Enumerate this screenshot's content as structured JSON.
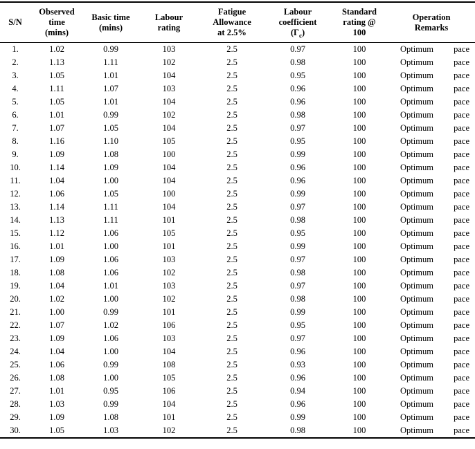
{
  "table": {
    "columns": [
      {
        "id": "sn",
        "label_lines": [
          "S/N"
        ]
      },
      {
        "id": "observed",
        "label_lines": [
          "Observed",
          "time",
          "(mins)"
        ]
      },
      {
        "id": "basic",
        "label_lines": [
          "Basic time",
          "(mins)"
        ]
      },
      {
        "id": "labour_rating",
        "label_lines": [
          "Labour",
          "rating"
        ]
      },
      {
        "id": "fatigue",
        "label_lines": [
          "Fatigue",
          "Allowance",
          "at 2.5%"
        ]
      },
      {
        "id": "coefficient",
        "label_lines": [
          "Labour",
          "coefficient"
        ],
        "symbol": {
          "open": "(Γ",
          "sub": "c",
          "close": ")"
        }
      },
      {
        "id": "standard",
        "label_lines": [
          "Standard",
          "rating @",
          "100"
        ]
      },
      {
        "id": "remarks",
        "label_lines": [
          "Operation",
          "Remarks"
        ]
      }
    ],
    "rows": [
      {
        "sn": "1.",
        "observed": "1.02",
        "basic": "0.99",
        "labour_rating": "103",
        "fatigue": "2.5",
        "coefficient": "0.97",
        "standard": "100",
        "remarks": "Optimum pace"
      },
      {
        "sn": "2.",
        "observed": "1.13",
        "basic": "1.11",
        "labour_rating": "102",
        "fatigue": "2.5",
        "coefficient": "0.98",
        "standard": "100",
        "remarks": "Optimum pace"
      },
      {
        "sn": "3.",
        "observed": "1.05",
        "basic": "1.01",
        "labour_rating": "104",
        "fatigue": "2.5",
        "coefficient": "0.95",
        "standard": "100",
        "remarks": "Optimum pace"
      },
      {
        "sn": "4.",
        "observed": "1.11",
        "basic": "1.07",
        "labour_rating": "103",
        "fatigue": "2.5",
        "coefficient": "0.96",
        "standard": "100",
        "remarks": "Optimum pace"
      },
      {
        "sn": "5.",
        "observed": "1.05",
        "basic": "1.01",
        "labour_rating": "104",
        "fatigue": "2.5",
        "coefficient": "0.96",
        "standard": "100",
        "remarks": "Optimum pace"
      },
      {
        "sn": "6.",
        "observed": "1.01",
        "basic": "0.99",
        "labour_rating": "102",
        "fatigue": "2.5",
        "coefficient": "0.98",
        "standard": "100",
        "remarks": "Optimum pace"
      },
      {
        "sn": "7.",
        "observed": "1.07",
        "basic": "1.05",
        "labour_rating": "104",
        "fatigue": "2.5",
        "coefficient": "0.97",
        "standard": "100",
        "remarks": "Optimum pace"
      },
      {
        "sn": "8.",
        "observed": "1.16",
        "basic": "1.10",
        "labour_rating": "105",
        "fatigue": "2.5",
        "coefficient": "0.95",
        "standard": "100",
        "remarks": "Optimum pace"
      },
      {
        "sn": "9.",
        "observed": "1.09",
        "basic": "1.08",
        "labour_rating": "100",
        "fatigue": "2.5",
        "coefficient": "0.99",
        "standard": "100",
        "remarks": "Optimum pace"
      },
      {
        "sn": "10.",
        "observed": "1.14",
        "basic": "1.09",
        "labour_rating": "104",
        "fatigue": "2.5",
        "coefficient": "0.96",
        "standard": "100",
        "remarks": "Optimum pace"
      },
      {
        "sn": "11.",
        "observed": "1.04",
        "basic": "1.00",
        "labour_rating": "104",
        "fatigue": "2.5",
        "coefficient": "0.96",
        "standard": "100",
        "remarks": "Optimum pace"
      },
      {
        "sn": "12.",
        "observed": "1.06",
        "basic": "1.05",
        "labour_rating": "100",
        "fatigue": "2.5",
        "coefficient": "0.99",
        "standard": "100",
        "remarks": "Optimum pace"
      },
      {
        "sn": "13.",
        "observed": "1.14",
        "basic": "1.11",
        "labour_rating": "104",
        "fatigue": "2.5",
        "coefficient": "0.97",
        "standard": "100",
        "remarks": "Optimum pace"
      },
      {
        "sn": "14.",
        "observed": "1.13",
        "basic": "1.11",
        "labour_rating": "101",
        "fatigue": "2.5",
        "coefficient": "0.98",
        "standard": "100",
        "remarks": "Optimum pace"
      },
      {
        "sn": "15.",
        "observed": "1.12",
        "basic": "1.06",
        "labour_rating": "105",
        "fatigue": "2.5",
        "coefficient": "0.95",
        "standard": "100",
        "remarks": "Optimum pace"
      },
      {
        "sn": "16.",
        "observed": "1.01",
        "basic": "1.00",
        "labour_rating": "101",
        "fatigue": "2.5",
        "coefficient": "0.99",
        "standard": "100",
        "remarks": "Optimum pace"
      },
      {
        "sn": "17.",
        "observed": "1.09",
        "basic": "1.06",
        "labour_rating": "103",
        "fatigue": "2.5",
        "coefficient": "0.97",
        "standard": "100",
        "remarks": "Optimum pace"
      },
      {
        "sn": "18.",
        "observed": "1.08",
        "basic": "1.06",
        "labour_rating": "102",
        "fatigue": "2.5",
        "coefficient": "0.98",
        "standard": "100",
        "remarks": "Optimum pace"
      },
      {
        "sn": "19.",
        "observed": "1.04",
        "basic": "1.01",
        "labour_rating": "103",
        "fatigue": "2.5",
        "coefficient": "0.97",
        "standard": "100",
        "remarks": "Optimum pace"
      },
      {
        "sn": "20.",
        "observed": "1.02",
        "basic": "1.00",
        "labour_rating": "102",
        "fatigue": "2.5",
        "coefficient": "0.98",
        "standard": "100",
        "remarks": "Optimum pace"
      },
      {
        "sn": "21.",
        "observed": "1.00",
        "basic": "0.99",
        "labour_rating": "101",
        "fatigue": "2.5",
        "coefficient": "0.99",
        "standard": "100",
        "remarks": "Optimum pace"
      },
      {
        "sn": "22.",
        "observed": "1.07",
        "basic": "1.02",
        "labour_rating": "106",
        "fatigue": "2.5",
        "coefficient": "0.95",
        "standard": "100",
        "remarks": "Optimum pace"
      },
      {
        "sn": "23.",
        "observed": "1.09",
        "basic": "1.06",
        "labour_rating": "103",
        "fatigue": "2.5",
        "coefficient": "0.97",
        "standard": "100",
        "remarks": "Optimum pace"
      },
      {
        "sn": "24.",
        "observed": "1.04",
        "basic": "1.00",
        "labour_rating": "104",
        "fatigue": "2.5",
        "coefficient": "0.96",
        "standard": "100",
        "remarks": "Optimum pace"
      },
      {
        "sn": "25.",
        "observed": "1.06",
        "basic": "0.99",
        "labour_rating": "108",
        "fatigue": "2.5",
        "coefficient": "0.93",
        "standard": "100",
        "remarks": "Optimum pace"
      },
      {
        "sn": "26.",
        "observed": "1.08",
        "basic": "1.00",
        "labour_rating": "105",
        "fatigue": "2.5",
        "coefficient": "0.96",
        "standard": "100",
        "remarks": "Optimum pace"
      },
      {
        "sn": "27.",
        "observed": "1.01",
        "basic": "0.95",
        "labour_rating": "106",
        "fatigue": "2.5",
        "coefficient": "0.94",
        "standard": "100",
        "remarks": "Optimum pace"
      },
      {
        "sn": "28.",
        "observed": "1.03",
        "basic": "0.99",
        "labour_rating": "104",
        "fatigue": "2.5",
        "coefficient": "0.96",
        "standard": "100",
        "remarks": "Optimum pace"
      },
      {
        "sn": "29.",
        "observed": "1.09",
        "basic": "1.08",
        "labour_rating": "101",
        "fatigue": "2.5",
        "coefficient": "0.99",
        "standard": "100",
        "remarks": "Optimum pace"
      },
      {
        "sn": "30.",
        "observed": "1.05",
        "basic": "1.03",
        "labour_rating": "102",
        "fatigue": "2.5",
        "coefficient": "0.98",
        "standard": "100",
        "remarks": "Optimum pace"
      }
    ],
    "colors": {
      "text": "#000000",
      "border": "#000000",
      "background": "#ffffff"
    }
  }
}
